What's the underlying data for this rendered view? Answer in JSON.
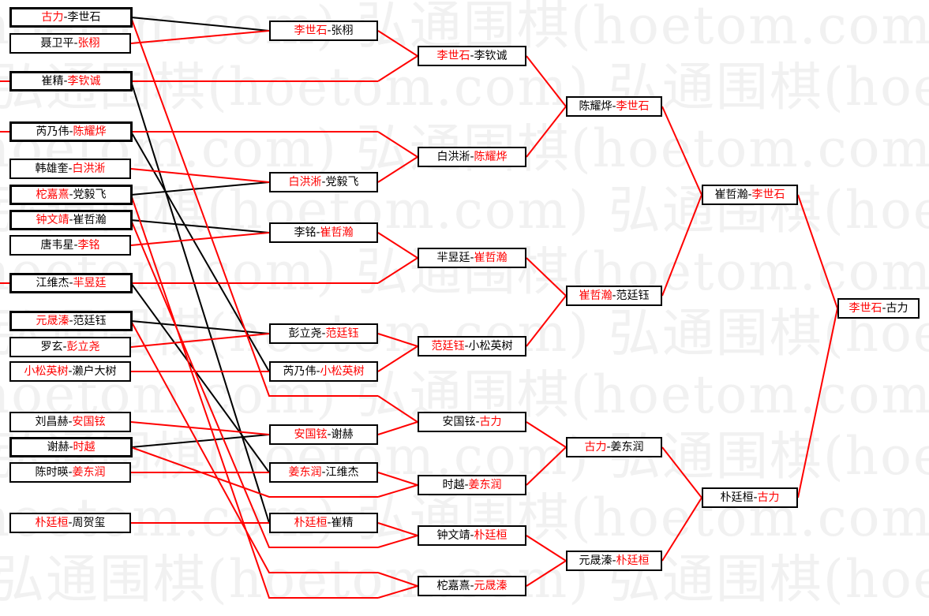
{
  "watermark": "弘通围棋(hoetom.com)",
  "colors": {
    "winner": "#ff0000",
    "loser": "#000000",
    "border": "#000000",
    "watermark": "#f1f1f1"
  },
  "rounds": [
    {
      "matches": [
        {
          "a": "古力",
          "b": "李世石",
          "winner": 0
        },
        {
          "a": "聂卫平",
          "b": "张栩",
          "winner": 1
        },
        {
          "a": "崔精",
          "b": "李钦诚",
          "winner": 1
        },
        {
          "a": "芮乃伟",
          "b": "陈耀烨",
          "winner": 1
        },
        {
          "a": "韩雄奎",
          "b": "白洪淅",
          "winner": 1
        },
        {
          "a": "柁嘉熹",
          "b": "党毅飞",
          "winner": 0
        },
        {
          "a": "钟文靖",
          "b": "崔哲瀚",
          "winner": 0
        },
        {
          "a": "唐韦星",
          "b": "李铭",
          "winner": 1
        },
        {
          "a": "江维杰",
          "b": "羋昱廷",
          "winner": 1
        },
        {
          "a": "元晟溱",
          "b": "范廷钰",
          "winner": 0
        },
        {
          "a": "罗玄",
          "b": "彭立尧",
          "winner": 1
        },
        {
          "a": "小松英树",
          "b": "濑户大树",
          "winner": 0
        },
        {
          "a": "刘昌赫",
          "b": "安国铉",
          "winner": 1
        },
        {
          "a": "谢赫",
          "b": "时越",
          "winner": 1
        },
        {
          "a": "陈时暎",
          "b": "姜东润",
          "winner": 1
        },
        {
          "a": "朴廷桓",
          "b": "周贺玺",
          "winner": 0
        }
      ]
    },
    {
      "matches": [
        {
          "a": "李世石",
          "b": "张栩",
          "winner": 0
        },
        {
          "a": "白洪淅",
          "b": "党毅飞",
          "winner": 0
        },
        {
          "a": "李铭",
          "b": "崔哲瀚",
          "winner": 1
        },
        {
          "a": "彭立尧",
          "b": "范廷钰",
          "winner": 1
        },
        {
          "a": "芮乃伟",
          "b": "小松英树",
          "winner": 1
        },
        {
          "a": "安国铉",
          "b": "谢赫",
          "winner": 0
        },
        {
          "a": "姜东润",
          "b": "江维杰",
          "winner": 0
        },
        {
          "a": "朴廷桓",
          "b": "崔精",
          "winner": 0
        }
      ]
    },
    {
      "matches": [
        {
          "a": "李世石",
          "b": "李钦诚",
          "winner": 0
        },
        {
          "a": "白洪淅",
          "b": "陈耀烨",
          "winner": 1
        },
        {
          "a": "羋昱廷",
          "b": "崔哲瀚",
          "winner": 1
        },
        {
          "a": "范廷钰",
          "b": "小松英树",
          "winner": 0
        },
        {
          "a": "安国铉",
          "b": "古力",
          "winner": 1
        },
        {
          "a": "时越",
          "b": "姜东润",
          "winner": 1
        },
        {
          "a": "钟文靖",
          "b": "朴廷桓",
          "winner": 1
        },
        {
          "a": "柁嘉熹",
          "b": "元晟溱",
          "winner": 1
        }
      ]
    },
    {
      "matches": [
        {
          "a": "陈耀烨",
          "b": "李世石",
          "winner": 1
        },
        {
          "a": "崔哲瀚",
          "b": "范廷钰",
          "winner": 0
        },
        {
          "a": "古力",
          "b": "姜东润",
          "winner": 0
        },
        {
          "a": "元晟溱",
          "b": "朴廷桓",
          "winner": 1
        }
      ]
    },
    {
      "matches": [
        {
          "a": "崔哲瀚",
          "b": "李世石",
          "winner": 1
        },
        {
          "a": "朴廷桓",
          "b": "古力",
          "winner": 1
        }
      ]
    },
    {
      "matches": [
        {
          "a": "李世石",
          "b": "古力",
          "winner": 0
        }
      ]
    }
  ]
}
